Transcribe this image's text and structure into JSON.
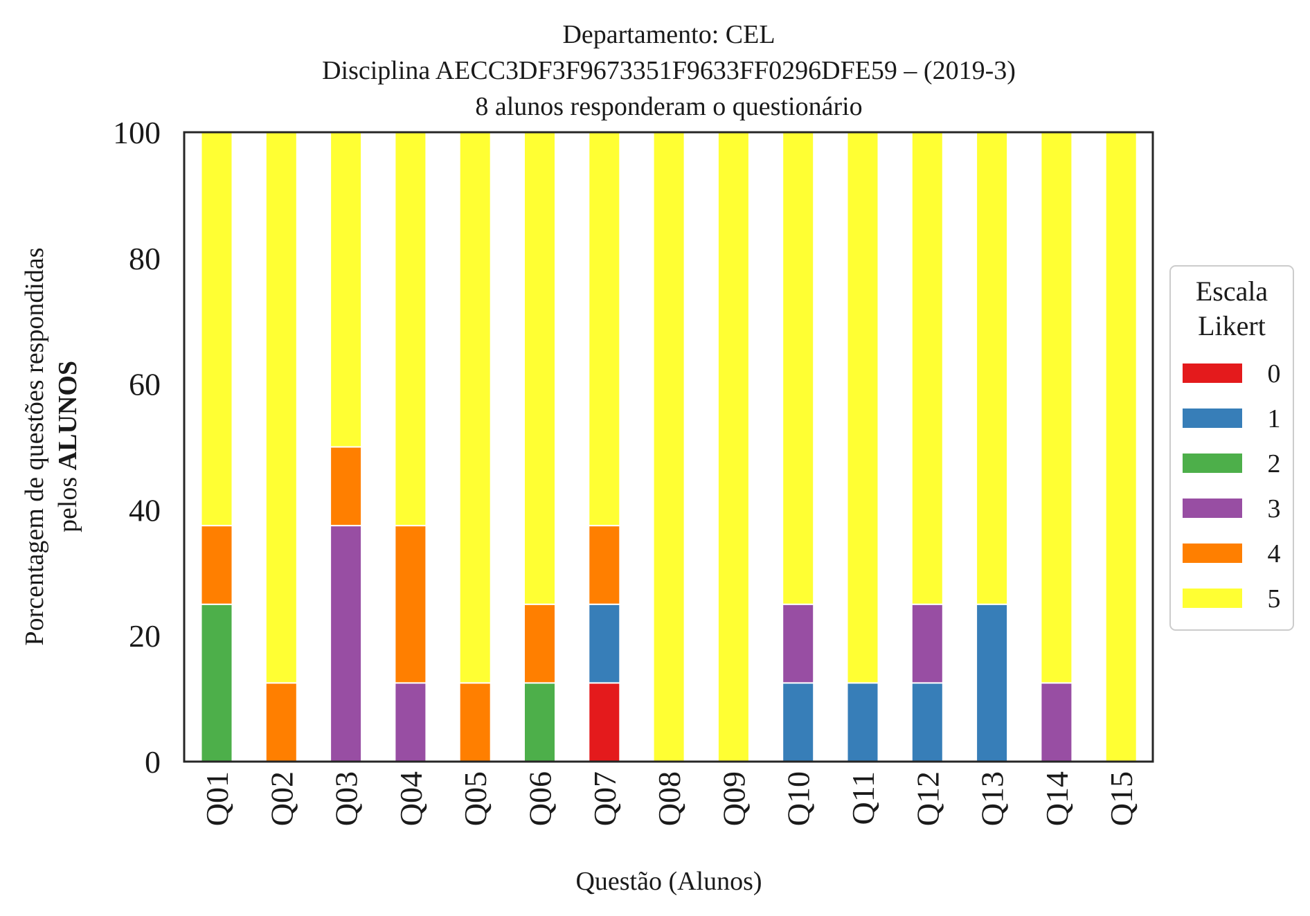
{
  "chart_data": {
    "type": "bar",
    "stacked": true,
    "title_lines": [
      "Departamento: CEL",
      "Disciplina AECC3DF3F9673351F9633FF0296DFE59 – (2019-3)",
      "8 alunos responderam o questionário"
    ],
    "xlabel": "Questão (Alunos)",
    "ylabel_line1": "Porcentagem de questões respondidas",
    "ylabel_line2_prefix": "pelos ",
    "ylabel_line2_bold": "ALUNOS",
    "ylim": [
      0,
      100
    ],
    "yticks": [
      "0",
      "20",
      "40",
      "60",
      "80",
      "100"
    ],
    "categories": [
      "Q01",
      "Q02",
      "Q03",
      "Q04",
      "Q05",
      "Q06",
      "Q07",
      "Q08",
      "Q09",
      "Q10",
      "Q11",
      "Q12",
      "Q13",
      "Q14",
      "Q15"
    ],
    "legend": {
      "title_line1": "Escala",
      "title_line2": "Likert",
      "placement": "center-right, outside"
    },
    "series": [
      {
        "name": "0",
        "color": "#e41a1c",
        "values": [
          0,
          0,
          0,
          0,
          0,
          0,
          12.5,
          0,
          0,
          0,
          0,
          0,
          0,
          0,
          0
        ]
      },
      {
        "name": "1",
        "color": "#377eb8",
        "values": [
          0,
          0,
          0,
          0,
          0,
          0,
          12.5,
          0,
          0,
          12.5,
          12.5,
          12.5,
          25,
          0,
          0
        ]
      },
      {
        "name": "2",
        "color": "#4daf4a",
        "values": [
          25,
          0,
          0,
          0,
          0,
          12.5,
          0,
          0,
          0,
          0,
          0,
          0,
          0,
          0,
          0
        ]
      },
      {
        "name": "3",
        "color": "#984ea3",
        "values": [
          0,
          0,
          37.5,
          12.5,
          0,
          0,
          0,
          0,
          0,
          12.5,
          0,
          12.5,
          0,
          12.5,
          0
        ]
      },
      {
        "name": "4",
        "color": "#ff7f00",
        "values": [
          12.5,
          12.5,
          12.5,
          25,
          12.5,
          12.5,
          12.5,
          0,
          0,
          0,
          0,
          0,
          0,
          0,
          0
        ]
      },
      {
        "name": "5",
        "color": "#ffff33",
        "values": [
          62.5,
          87.5,
          50,
          62.5,
          87.5,
          75,
          62.5,
          100,
          100,
          75,
          87.5,
          75,
          75,
          87.5,
          100
        ]
      }
    ]
  }
}
